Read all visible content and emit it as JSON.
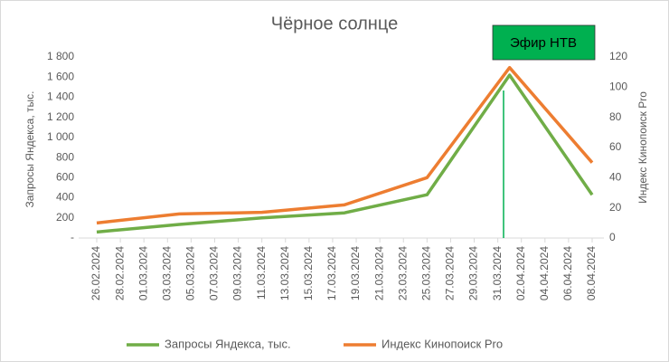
{
  "chart_data": {
    "type": "line",
    "title": "Чёрное солнце",
    "x": [
      "26.02.2024",
      "04.03.2024",
      "11.03.2024",
      "18.03.2024",
      "25.03.2024",
      "01.04.2024",
      "08.04.2024"
    ],
    "xlim": [
      "26.02.2024",
      "08.04.2024"
    ],
    "xticks": [
      "26.02.2024",
      "28.02.2024",
      "01.03.2024",
      "03.03.2024",
      "05.03.2024",
      "07.03.2024",
      "09.03.2024",
      "11.03.2024",
      "13.03.2024",
      "15.03.2024",
      "17.03.2024",
      "19.03.2024",
      "21.03.2024",
      "23.03.2024",
      "25.03.2024",
      "27.03.2024",
      "29.03.2024",
      "31.03.2024",
      "02.04.2024",
      "04.04.2024",
      "06.04.2024",
      "08.04.2024"
    ],
    "ylabel": "Запросы Яндекса, тыс.",
    "y2label": "Индекс Кинопоиск Pro",
    "ylim": [
      0,
      1800
    ],
    "yticks": [
      {
        "value": 0,
        "label": "-"
      },
      200,
      400,
      600,
      800,
      {
        "value": 1000,
        "label": "1 000"
      },
      {
        "value": 1200,
        "label": "1 200"
      },
      {
        "value": 1400,
        "label": "1 400"
      },
      {
        "value": 1600,
        "label": "1 600"
      },
      {
        "value": 1800,
        "label": "1 800"
      }
    ],
    "y2lim": [
      0,
      120
    ],
    "y2ticks": [
      0,
      20,
      40,
      60,
      80,
      100,
      120
    ],
    "series": [
      {
        "name": "Запросы Яндекса, тыс.",
        "color": "#70ad47",
        "values": [
          60,
          135,
          200,
          250,
          430,
          1620,
          430
        ]
      },
      {
        "name": "Индекс Кинопоиск Pro",
        "color": "#ed7d31",
        "axis": "y2",
        "values": [
          10,
          16,
          17,
          22,
          40,
          113,
          50
        ]
      }
    ],
    "annotation": "Эфир НТВ",
    "legend": "bottom"
  }
}
